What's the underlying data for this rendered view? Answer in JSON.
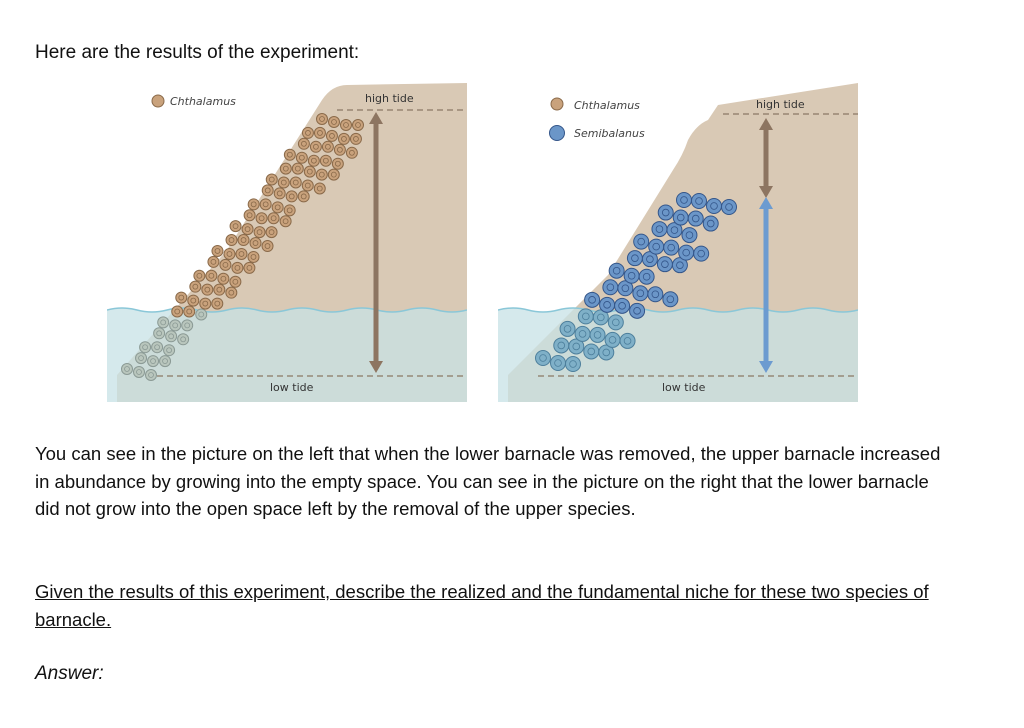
{
  "heading": "Here are the results of the experiment:",
  "colors": {
    "rock": "#d9c9b5",
    "water": "#c7e1e6",
    "water_surface": "#8ac7d8",
    "chthalamus": "#c9a27c",
    "chthalamus_outline": "#8a6a4a",
    "semibalanus": "#6b96c8",
    "semibalanus_outline": "#34568a",
    "arrow_brown": "#8d7561",
    "arrow_blue": "#6c9bd0",
    "tide_line": "#8a7866"
  },
  "left_diagram": {
    "legend": [
      {
        "label": "Chthalamus",
        "species": "chthalamus"
      }
    ],
    "high_tide_label": "high tide",
    "low_tide_label": "low tide",
    "arrows": [
      "chthalamus-range"
    ]
  },
  "right_diagram": {
    "legend": [
      {
        "label": "Chthalamus",
        "species": "chthalamus"
      },
      {
        "label": "Semibalanus",
        "species": "semibalanus"
      }
    ],
    "high_tide_label": "high tide",
    "low_tide_label": "low tide",
    "arrows": [
      "chthalamus-range",
      "semibalanus-range"
    ]
  },
  "paragraph": "You can see in the picture on the left that when the lower barnacle was removed, the upper barnacle increased in abundance by growing into the empty space. You can see in the picture on the right that the lower barnacle did not grow into the open space left by the removal of the upper species.",
  "question": "Given the results of this experiment, describe the realized and the fundamental niche for these two species of barnacle.",
  "answer_label": "Answer:"
}
